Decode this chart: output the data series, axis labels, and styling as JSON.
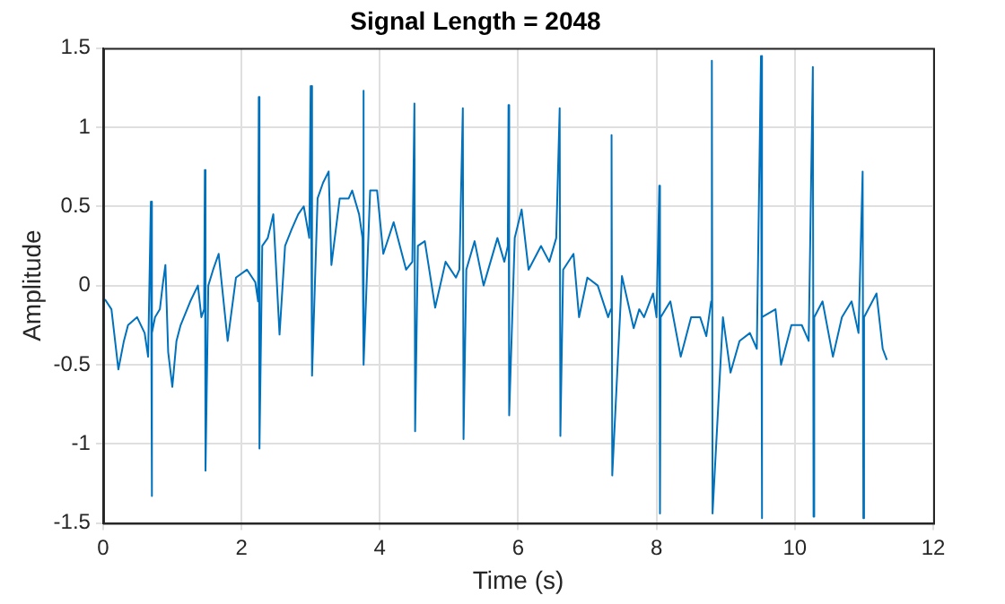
{
  "chart_data": {
    "type": "line",
    "title": "Signal Length = 2048",
    "xlabel": "Time (s)",
    "ylabel": "Amplitude",
    "xlim": [
      0,
      12
    ],
    "xticks": [
      0,
      2,
      4,
      6,
      8,
      10,
      12
    ],
    "ylim": [
      -1.5,
      1.5
    ],
    "yticks": [
      -1.5,
      -1,
      -0.5,
      0,
      0.5,
      1,
      1.5
    ],
    "grid": true,
    "legend": false,
    "series": [
      {
        "color": "#0072bd",
        "x": [
          0,
          0.03,
          0.12,
          0.22,
          0.3,
          0.36,
          0.49,
          0.6,
          0.65,
          0.69,
          0.7,
          0.71,
          0.75,
          0.82,
          0.86,
          0.9,
          0.94,
          1.0,
          1.06,
          1.12,
          1.26,
          1.37,
          1.42,
          1.46,
          1.47,
          1.48,
          1.52,
          1.59,
          1.67,
          1.8,
          1.92,
          2.08,
          2.2,
          2.24,
          2.25,
          2.26,
          2.3,
          2.38,
          2.46,
          2.55,
          2.63,
          2.72,
          2.82,
          2.9,
          2.98,
          3.0,
          3.02,
          3.1,
          3.18,
          3.26,
          3.3,
          3.42,
          3.55,
          3.6,
          3.7,
          3.75,
          3.76,
          3.77,
          3.86,
          3.96,
          4.05,
          4.2,
          4.38,
          4.47,
          4.5,
          4.51,
          4.55,
          4.65,
          4.8,
          4.95,
          5.1,
          5.15,
          5.2,
          5.21,
          5.25,
          5.37,
          5.5,
          5.7,
          5.8,
          5.85,
          5.86,
          5.87,
          5.95,
          6.05,
          6.15,
          6.33,
          6.45,
          6.55,
          6.6,
          6.61,
          6.65,
          6.8,
          6.88,
          7.0,
          7.15,
          7.3,
          7.34,
          7.35,
          7.36,
          7.5,
          7.67,
          7.75,
          7.82,
          7.95,
          8.0,
          8.04,
          8.05,
          8.06,
          8.2,
          8.35,
          8.5,
          8.63,
          8.72,
          8.79,
          8.8,
          8.81,
          8.96,
          9.07,
          9.2,
          9.35,
          9.45,
          9.51,
          9.52,
          9.53,
          9.72,
          9.8,
          9.95,
          10.1,
          10.2,
          10.26,
          10.27,
          10.28,
          10.4,
          10.55,
          10.68,
          10.82,
          10.92,
          10.98,
          10.99,
          11.0,
          11.18,
          11.27,
          11.33
        ],
        "values": [
          -0.1,
          -0.09,
          -0.15,
          -0.53,
          -0.35,
          -0.25,
          -0.2,
          -0.3,
          -0.45,
          0.53,
          -1.33,
          -0.3,
          -0.2,
          -0.15,
          0.0,
          0.13,
          -0.42,
          -0.64,
          -0.35,
          -0.25,
          -0.1,
          0.0,
          -0.2,
          -0.15,
          0.73,
          -1.17,
          0.0,
          0.1,
          0.2,
          -0.35,
          0.05,
          0.1,
          0.02,
          -0.1,
          1.19,
          -1.03,
          0.25,
          0.3,
          0.45,
          -0.31,
          0.25,
          0.35,
          0.45,
          0.5,
          0.3,
          1.26,
          -0.57,
          0.55,
          0.65,
          0.72,
          0.13,
          0.55,
          0.55,
          0.6,
          0.45,
          0.3,
          1.23,
          -0.5,
          0.6,
          0.6,
          0.2,
          0.4,
          0.1,
          0.15,
          1.15,
          -0.92,
          0.25,
          0.28,
          -0.14,
          0.15,
          0.05,
          0.1,
          1.12,
          -0.97,
          0.1,
          0.28,
          0.0,
          0.3,
          0.15,
          0.25,
          1.14,
          -0.82,
          0.3,
          0.48,
          0.1,
          0.25,
          0.15,
          0.3,
          1.12,
          -0.95,
          0.1,
          0.2,
          -0.2,
          0.05,
          0.0,
          -0.2,
          -0.15,
          0.95,
          -1.2,
          0.06,
          -0.27,
          -0.15,
          -0.2,
          -0.05,
          -0.2,
          0.63,
          -1.44,
          -0.2,
          -0.1,
          -0.45,
          -0.2,
          -0.2,
          -0.32,
          -0.1,
          1.42,
          -1.44,
          -0.2,
          -0.55,
          -0.35,
          -0.3,
          -0.4,
          1.45,
          -1.47,
          -0.2,
          -0.15,
          -0.5,
          -0.25,
          -0.25,
          -0.35,
          1.38,
          -1.46,
          -0.2,
          -0.1,
          -0.45,
          -0.2,
          -0.1,
          -0.3,
          0.72,
          -1.47,
          -0.2,
          -0.05,
          -0.4,
          -0.47
        ]
      }
    ]
  }
}
